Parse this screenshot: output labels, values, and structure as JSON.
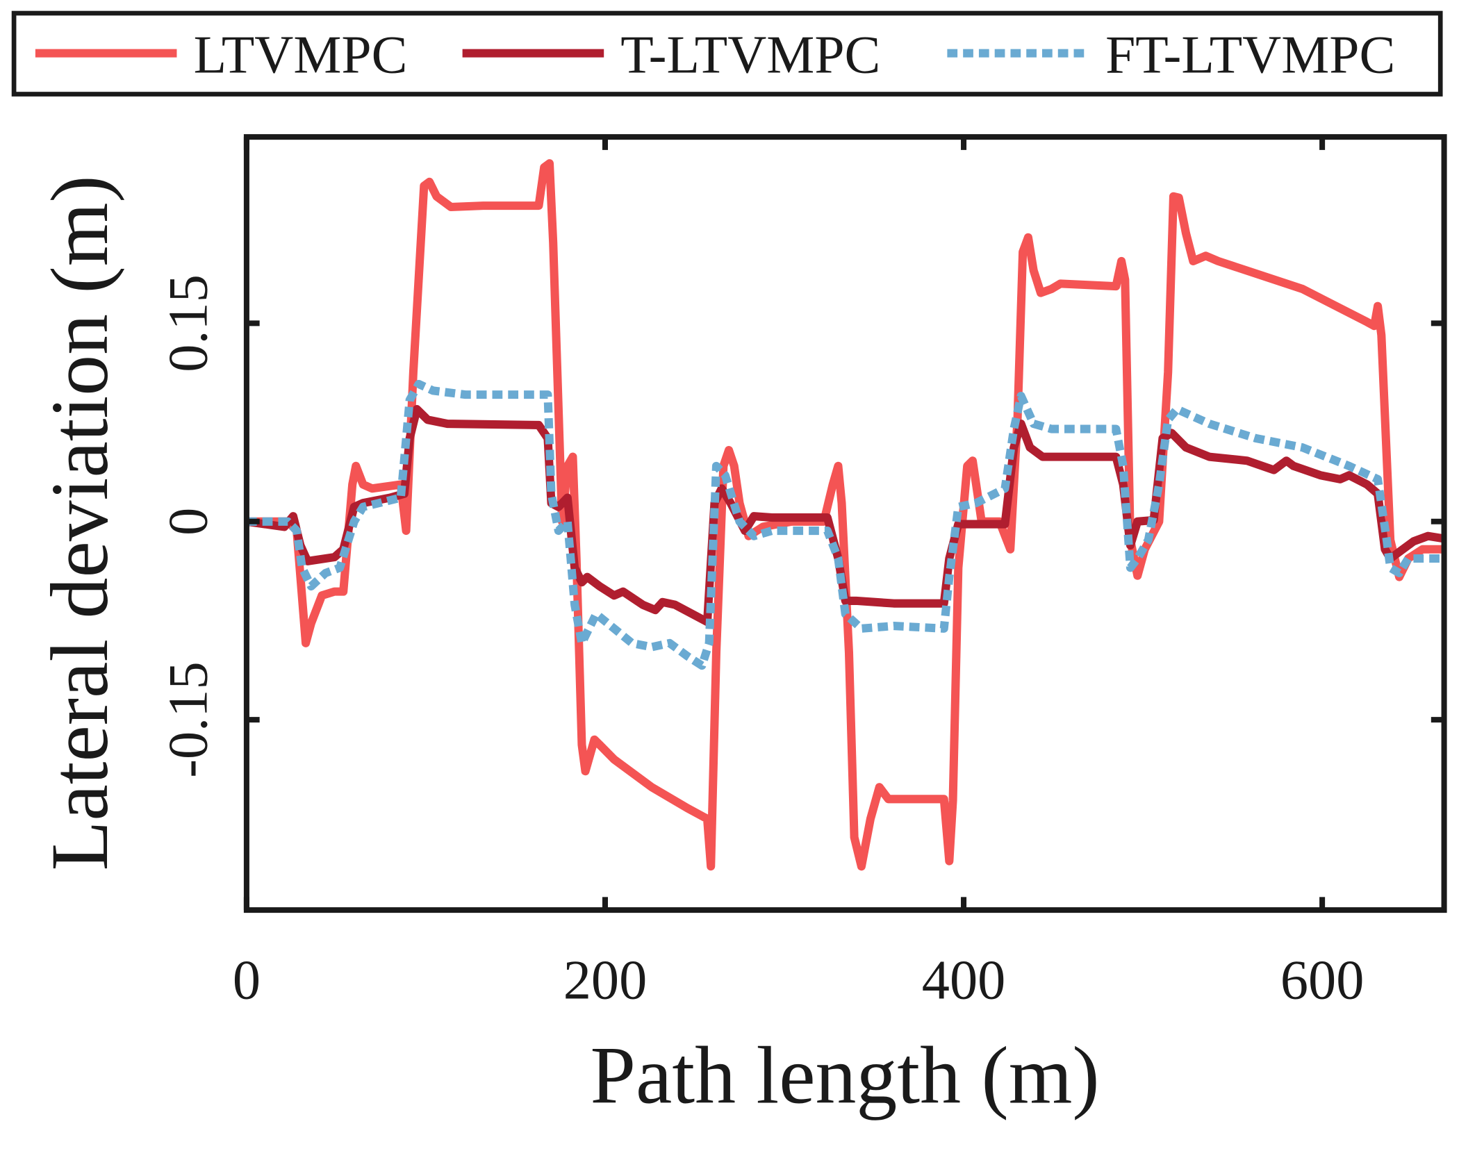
{
  "chart_data": {
    "type": "line",
    "xlabel": "Path length (m)",
    "ylabel": "Lateral deviation (m)",
    "xlim": [
      0,
      668
    ],
    "ylim": [
      -0.294,
      0.291
    ],
    "xticks": [
      0,
      200,
      400,
      600
    ],
    "xtick_labels": [
      "0",
      "200",
      "400",
      "600"
    ],
    "yticks": [
      -0.15,
      0,
      0.15
    ],
    "ytick_labels": [
      "-0.15",
      "0",
      "0.15"
    ],
    "grid": false,
    "legend_position": "top (above plot, horizontal)",
    "series": [
      {
        "name": "LTVMPC",
        "color": "#f45454",
        "style": "solid",
        "points": [
          [
            0,
            0
          ],
          [
            23,
            0
          ],
          [
            28,
            -0.007
          ],
          [
            33,
            -0.092
          ],
          [
            36,
            -0.077
          ],
          [
            42,
            -0.056
          ],
          [
            49,
            -0.053
          ],
          [
            54,
            -0.053
          ],
          [
            59,
            0.028
          ],
          [
            61,
            0.042
          ],
          [
            65,
            0.028
          ],
          [
            70,
            0.025
          ],
          [
            86,
            0.028
          ],
          [
            89,
            -0.007
          ],
          [
            93,
            0.113
          ],
          [
            99,
            0.254
          ],
          [
            102,
            0.257
          ],
          [
            106,
            0.246
          ],
          [
            114,
            0.238
          ],
          [
            132,
            0.239
          ],
          [
            163,
            0.239
          ],
          [
            166,
            0.268
          ],
          [
            169,
            0.271
          ],
          [
            171,
            0.211
          ],
          [
            176,
            0
          ],
          [
            179,
            0.042
          ],
          [
            182,
            0.049
          ],
          [
            184,
            -0.028
          ],
          [
            187,
            -0.169
          ],
          [
            189,
            -0.189
          ],
          [
            194,
            -0.165
          ],
          [
            197,
            -0.169
          ],
          [
            205,
            -0.18
          ],
          [
            226,
            -0.201
          ],
          [
            246,
            -0.217
          ],
          [
            257,
            -0.225
          ],
          [
            259,
            -0.261
          ],
          [
            262,
            -0.099
          ],
          [
            266,
            0.042
          ],
          [
            269,
            0.054
          ],
          [
            272,
            0.042
          ],
          [
            275,
            0.014
          ],
          [
            280,
            -0.011
          ],
          [
            288,
            -0.004
          ],
          [
            304,
            0
          ],
          [
            322,
            0
          ],
          [
            327,
            0.028
          ],
          [
            330,
            0.042
          ],
          [
            332,
            0.014
          ],
          [
            336,
            -0.099
          ],
          [
            339,
            -0.239
          ],
          [
            343,
            -0.261
          ],
          [
            348,
            -0.225
          ],
          [
            353,
            -0.201
          ],
          [
            358,
            -0.21
          ],
          [
            366,
            -0.21
          ],
          [
            389,
            -0.21
          ],
          [
            392,
            -0.257
          ],
          [
            394,
            -0.211
          ],
          [
            397,
            -0.035
          ],
          [
            402,
            0.042
          ],
          [
            405,
            0.046
          ],
          [
            407,
            0.028
          ],
          [
            410,
            0
          ],
          [
            415,
            0
          ],
          [
            420,
            0
          ],
          [
            426,
            -0.021
          ],
          [
            430,
            0.077
          ],
          [
            433,
            0.204
          ],
          [
            436,
            0.215
          ],
          [
            439,
            0.19
          ],
          [
            443,
            0.173
          ],
          [
            449,
            0.176
          ],
          [
            454,
            0.18
          ],
          [
            485,
            0.178
          ],
          [
            488,
            0.197
          ],
          [
            490,
            0.183
          ],
          [
            493,
            -0.014
          ],
          [
            497,
            -0.041
          ],
          [
            501,
            -0.021
          ],
          [
            509,
            0
          ],
          [
            514,
            0.113
          ],
          [
            517,
            0.246
          ],
          [
            520,
            0.245
          ],
          [
            524,
            0.218
          ],
          [
            528,
            0.197
          ],
          [
            535,
            0.201
          ],
          [
            542,
            0.197
          ],
          [
            589,
            0.176
          ],
          [
            625,
            0.151
          ],
          [
            629,
            0.148
          ],
          [
            631,
            0.163
          ],
          [
            633,
            0.141
          ],
          [
            638,
            -0.014
          ],
          [
            643,
            -0.042
          ],
          [
            648,
            -0.028
          ],
          [
            656,
            -0.021
          ],
          [
            668,
            -0.021
          ]
        ]
      },
      {
        "name": "T-LTVMPC",
        "color": "#b01e2f",
        "style": "solid",
        "points": [
          [
            0,
            0
          ],
          [
            21,
            -0.004
          ],
          [
            26,
            0.004
          ],
          [
            30,
            -0.018
          ],
          [
            34,
            -0.03
          ],
          [
            49,
            -0.027
          ],
          [
            54,
            -0.021
          ],
          [
            60,
            0.011
          ],
          [
            65,
            0.014
          ],
          [
            80,
            0.018
          ],
          [
            88,
            0.021
          ],
          [
            91,
            0.063
          ],
          [
            95,
            0.085
          ],
          [
            101,
            0.077
          ],
          [
            112,
            0.074
          ],
          [
            163,
            0.073
          ],
          [
            168,
            0.063
          ],
          [
            170,
            0.014
          ],
          [
            174,
            0.011
          ],
          [
            179,
            0.018
          ],
          [
            183,
            -0.035
          ],
          [
            187,
            -0.046
          ],
          [
            190,
            -0.042
          ],
          [
            197,
            -0.049
          ],
          [
            205,
            -0.056
          ],
          [
            210,
            -0.053
          ],
          [
            221,
            -0.063
          ],
          [
            228,
            -0.067
          ],
          [
            232,
            -0.061
          ],
          [
            239,
            -0.063
          ],
          [
            257,
            -0.076
          ],
          [
            261,
            0.014
          ],
          [
            265,
            0.025
          ],
          [
            270,
            0.014
          ],
          [
            278,
            -0.007
          ],
          [
            283,
            0.004
          ],
          [
            293,
            0.003
          ],
          [
            324,
            0.003
          ],
          [
            330,
            -0.028
          ],
          [
            334,
            -0.06
          ],
          [
            340,
            -0.06
          ],
          [
            361,
            -0.062
          ],
          [
            389,
            -0.062
          ],
          [
            392,
            -0.028
          ],
          [
            397,
            -0.002
          ],
          [
            407,
            -0.002
          ],
          [
            423,
            -0.002
          ],
          [
            428,
            0.056
          ],
          [
            432,
            0.074
          ],
          [
            437,
            0.056
          ],
          [
            444,
            0.049
          ],
          [
            485,
            0.049
          ],
          [
            489,
            0.028
          ],
          [
            493,
            -0.018
          ],
          [
            497,
            0
          ],
          [
            506,
            0.001
          ],
          [
            511,
            0.063
          ],
          [
            516,
            0.067
          ],
          [
            524,
            0.056
          ],
          [
            537,
            0.049
          ],
          [
            558,
            0.046
          ],
          [
            573,
            0.039
          ],
          [
            580,
            0.046
          ],
          [
            584,
            0.042
          ],
          [
            599,
            0.035
          ],
          [
            610,
            0.032
          ],
          [
            615,
            0.035
          ],
          [
            625,
            0.028
          ],
          [
            631,
            0.021
          ],
          [
            635,
            -0.021
          ],
          [
            638,
            -0.028
          ],
          [
            651,
            -0.015
          ],
          [
            659,
            -0.011
          ],
          [
            668,
            -0.013
          ]
        ]
      },
      {
        "name": "FT-LTVMPC",
        "color": "#6aaad2",
        "style": "dotted",
        "points": [
          [
            0,
            0
          ],
          [
            23,
            0
          ],
          [
            28,
            -0.007
          ],
          [
            31,
            -0.035
          ],
          [
            36,
            -0.049
          ],
          [
            44,
            -0.039
          ],
          [
            52,
            -0.035
          ],
          [
            60,
            0
          ],
          [
            65,
            0.011
          ],
          [
            86,
            0.018
          ],
          [
            91,
            0.092
          ],
          [
            96,
            0.104
          ],
          [
            104,
            0.099
          ],
          [
            122,
            0.096
          ],
          [
            168,
            0.096
          ],
          [
            170,
            0.021
          ],
          [
            174,
            -0.007
          ],
          [
            179,
            0
          ],
          [
            183,
            -0.063
          ],
          [
            187,
            -0.092
          ],
          [
            195,
            -0.07
          ],
          [
            205,
            -0.081
          ],
          [
            215,
            -0.092
          ],
          [
            226,
            -0.095
          ],
          [
            236,
            -0.092
          ],
          [
            246,
            -0.102
          ],
          [
            254,
            -0.109
          ],
          [
            258,
            -0.092
          ],
          [
            262,
            0.042
          ],
          [
            267,
            0.035
          ],
          [
            275,
            0
          ],
          [
            283,
            -0.011
          ],
          [
            293,
            -0.007
          ],
          [
            324,
            -0.007
          ],
          [
            330,
            -0.028
          ],
          [
            334,
            -0.07
          ],
          [
            343,
            -0.081
          ],
          [
            361,
            -0.079
          ],
          [
            389,
            -0.081
          ],
          [
            392,
            -0.042
          ],
          [
            397,
            0.011
          ],
          [
            407,
            0.014
          ],
          [
            423,
            0.025
          ],
          [
            428,
            0.07
          ],
          [
            432,
            0.095
          ],
          [
            439,
            0.074
          ],
          [
            449,
            0.07
          ],
          [
            485,
            0.07
          ],
          [
            489,
            0.042
          ],
          [
            493,
            -0.035
          ],
          [
            497,
            -0.028
          ],
          [
            503,
            -0.014
          ],
          [
            509,
            0.028
          ],
          [
            514,
            0.077
          ],
          [
            519,
            0.085
          ],
          [
            537,
            0.074
          ],
          [
            563,
            0.063
          ],
          [
            589,
            0.056
          ],
          [
            615,
            0.042
          ],
          [
            631,
            0.032
          ],
          [
            636,
            -0.014
          ],
          [
            638,
            -0.035
          ],
          [
            643,
            -0.039
          ],
          [
            648,
            -0.028
          ],
          [
            668,
            -0.028
          ]
        ]
      }
    ]
  }
}
